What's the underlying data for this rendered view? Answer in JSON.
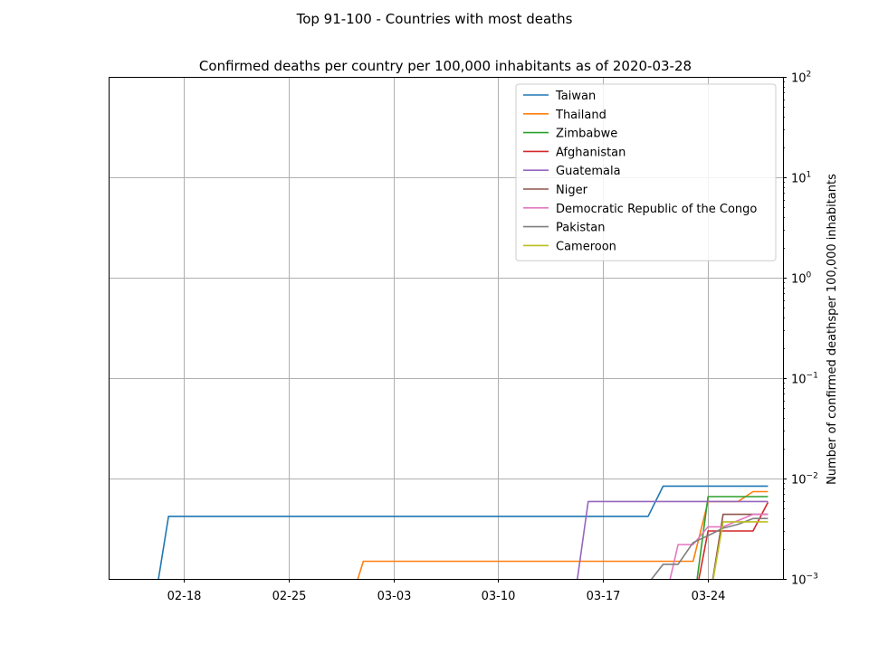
{
  "chart_data": {
    "type": "line",
    "title": "Top 91-100 - Countries with most deaths",
    "subtitle": "Confirmed deaths per country per 100,000 inhabitants as of 2020-03-28",
    "xlabel": "",
    "ylabel": "Number of confirmed deathsper 100,000 inhabitants",
    "y_scale": "log",
    "y_axis_side": "right",
    "ylim": [
      0.001,
      100
    ],
    "xlim": [
      "2020-02-13",
      "2020-03-29"
    ],
    "x_ticks": [
      "02-18",
      "02-25",
      "03-03",
      "03-10",
      "03-17",
      "03-24"
    ],
    "x_tick_dates": [
      "2020-02-18",
      "2020-02-25",
      "2020-03-03",
      "2020-03-10",
      "2020-03-17",
      "2020-03-24"
    ],
    "y_ticks": [
      {
        "value": 0.001,
        "base": "10",
        "exp": "−3"
      },
      {
        "value": 0.01,
        "base": "10",
        "exp": "−2"
      },
      {
        "value": 0.1,
        "base": "10",
        "exp": "−1"
      },
      {
        "value": 1,
        "base": "10",
        "exp": "0"
      },
      {
        "value": 10,
        "base": "10",
        "exp": "1"
      },
      {
        "value": 100,
        "base": "10",
        "exp": "2"
      }
    ],
    "grid": true,
    "legend_position": "top-right",
    "series": [
      {
        "name": "Taiwan",
        "color": "#1f77b4",
        "points": [
          [
            "2020-02-16",
            0.0005
          ],
          [
            "2020-02-17",
            0.0042
          ],
          [
            "2020-03-20",
            0.0042
          ],
          [
            "2020-03-21",
            0.0084
          ],
          [
            "2020-03-28",
            0.0084
          ]
        ]
      },
      {
        "name": "Thailand",
        "color": "#ff7f0e",
        "points": [
          [
            "2020-02-29",
            0.0005
          ],
          [
            "2020-03-01",
            0.0015
          ],
          [
            "2020-03-22",
            0.0015
          ],
          [
            "2020-03-23",
            0.0015
          ],
          [
            "2020-03-24",
            0.0059
          ],
          [
            "2020-03-26",
            0.0059
          ],
          [
            "2020-03-27",
            0.0074
          ],
          [
            "2020-03-28",
            0.0074
          ]
        ]
      },
      {
        "name": "Zimbabwe",
        "color": "#2ca02c",
        "points": [
          [
            "2020-03-23",
            0.0005
          ],
          [
            "2020-03-24",
            0.0066
          ],
          [
            "2020-03-28",
            0.0066
          ]
        ]
      },
      {
        "name": "Afghanistan",
        "color": "#d62728",
        "points": [
          [
            "2020-03-23",
            0.0005
          ],
          [
            "2020-03-24",
            0.003
          ],
          [
            "2020-03-27",
            0.003
          ],
          [
            "2020-03-28",
            0.0058
          ]
        ]
      },
      {
        "name": "Guatemala",
        "color": "#9467bd",
        "points": [
          [
            "2020-03-15",
            0.0005
          ],
          [
            "2020-03-16",
            0.0059
          ],
          [
            "2020-03-28",
            0.0059
          ]
        ]
      },
      {
        "name": "Niger",
        "color": "#8c564b",
        "points": [
          [
            "2020-03-24",
            0.0005
          ],
          [
            "2020-03-25",
            0.0044
          ],
          [
            "2020-03-28",
            0.0044
          ]
        ]
      },
      {
        "name": "Democratic Republic of the Congo",
        "color": "#e377c2",
        "points": [
          [
            "2020-03-21",
            0.0005
          ],
          [
            "2020-03-22",
            0.0022
          ],
          [
            "2020-03-23",
            0.0022
          ],
          [
            "2020-03-24",
            0.0033
          ],
          [
            "2020-03-25",
            0.0033
          ],
          [
            "2020-03-27",
            0.0044
          ],
          [
            "2020-03-28",
            0.0044
          ]
        ]
      },
      {
        "name": "Pakistan",
        "color": "#7f7f7f",
        "points": [
          [
            "2020-03-19",
            0.0005
          ],
          [
            "2020-03-20",
            0.0009
          ],
          [
            "2020-03-21",
            0.0014
          ],
          [
            "2020-03-22",
            0.0014
          ],
          [
            "2020-03-23",
            0.0023
          ],
          [
            "2020-03-24",
            0.0027
          ],
          [
            "2020-03-25",
            0.0032
          ],
          [
            "2020-03-26",
            0.0035
          ],
          [
            "2020-03-27",
            0.004
          ],
          [
            "2020-03-28",
            0.004
          ]
        ]
      },
      {
        "name": "Cameroon",
        "color": "#bcbd22",
        "points": [
          [
            "2020-03-24",
            0.0005
          ],
          [
            "2020-03-25",
            0.0037
          ],
          [
            "2020-03-28",
            0.0037
          ]
        ]
      }
    ]
  }
}
